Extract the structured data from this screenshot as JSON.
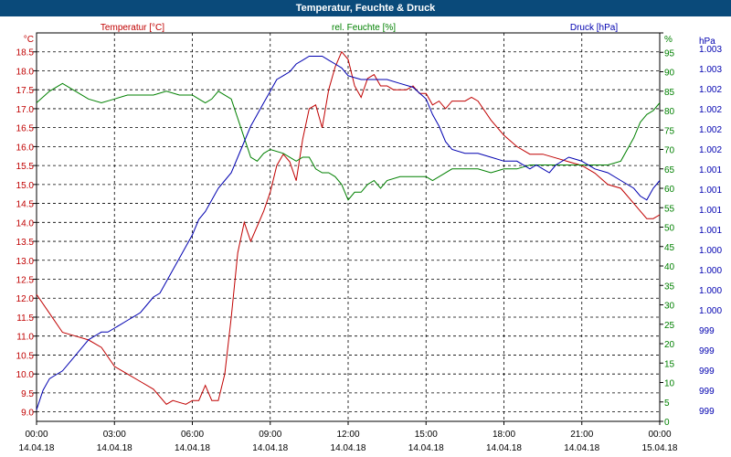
{
  "window": {
    "title": "Temperatur, Feuchte & Druck"
  },
  "colors": {
    "temp": "#c00000",
    "humidity": "#008000",
    "pressure": "#0000b0",
    "grid": "#000000",
    "titlebar": "#0a4a7a"
  },
  "chart_data": {
    "type": "line",
    "title": "Temperatur, Feuchte & Druck",
    "grid": true,
    "legend_placement": "top",
    "x_ticks": [
      "00:00",
      "03:00",
      "06:00",
      "09:00",
      "12:00",
      "15:00",
      "18:00",
      "21:00",
      "00:00"
    ],
    "x_dates": [
      "14.04.18",
      "14.04.18",
      "14.04.18",
      "14.04.18",
      "14.04.18",
      "14.04.18",
      "14.04.18",
      "14.04.18",
      "15.04.18"
    ],
    "axes": {
      "temp": {
        "unit": "°C",
        "label": "Temperatur [°C]",
        "ylim": [
          8.75,
          19.0
        ],
        "ticks": [
          "9.0",
          "9.5",
          "10.0",
          "10.5",
          "11.0",
          "11.5",
          "12.0",
          "12.5",
          "13.0",
          "13.5",
          "14.0",
          "14.5",
          "15.0",
          "15.5",
          "16.0",
          "16.5",
          "17.0",
          "17.5",
          "18.0",
          "18.5"
        ]
      },
      "humidity": {
        "unit": "%",
        "label": "rel. Feuchte [%]",
        "ylim": [
          0,
          100
        ],
        "ticks": [
          "0",
          "5",
          "10",
          "15",
          "20",
          "25",
          "30",
          "35",
          "40",
          "45",
          "50",
          "55",
          "60",
          "65",
          "70",
          "75",
          "80",
          "85",
          "90",
          "95",
          "%"
        ]
      },
      "pressure": {
        "unit": "hPa",
        "label": "Druck [hPa]",
        "ticks": [
          "999",
          "999",
          "999",
          "999",
          "999",
          "1.000",
          "1.000",
          "1.000",
          "1.000",
          "1.001",
          "1.001",
          "1.001",
          "1.001",
          "1.002",
          "1.002",
          "1.002",
          "1.002",
          "1.003",
          "1.003"
        ]
      }
    },
    "series": [
      {
        "name": "Temperatur [°C]",
        "axis": "temp",
        "x": [
          0,
          0.5,
          1,
          1.5,
          2,
          2.5,
          3,
          3.5,
          4,
          4.5,
          5,
          5.25,
          5.5,
          5.75,
          6,
          6.25,
          6.5,
          6.75,
          7,
          7.25,
          7.5,
          7.75,
          8,
          8.25,
          8.5,
          8.75,
          9,
          9.25,
          9.5,
          9.75,
          10,
          10.25,
          10.5,
          10.75,
          11,
          11.25,
          11.5,
          11.75,
          12,
          12.25,
          12.5,
          12.75,
          13,
          13.25,
          13.5,
          13.75,
          14,
          14.25,
          14.5,
          14.75,
          15,
          15.25,
          15.5,
          15.75,
          16,
          16.25,
          16.5,
          16.75,
          17,
          17.5,
          18,
          18.5,
          19,
          19.5,
          20,
          20.5,
          21,
          21.5,
          22,
          22.5,
          23,
          23.25,
          23.5,
          23.75,
          24
        ],
        "values": [
          12.1,
          11.6,
          11.1,
          11.0,
          10.9,
          10.7,
          10.2,
          10.0,
          9.8,
          9.6,
          9.2,
          9.3,
          9.25,
          9.2,
          9.3,
          9.3,
          9.7,
          9.3,
          9.3,
          10.0,
          11.5,
          13.2,
          14.0,
          13.5,
          13.9,
          14.3,
          14.8,
          15.5,
          15.8,
          15.6,
          15.1,
          16.2,
          17.0,
          17.1,
          16.5,
          17.5,
          18.1,
          18.5,
          18.3,
          17.6,
          17.3,
          17.8,
          17.9,
          17.6,
          17.6,
          17.5,
          17.5,
          17.5,
          17.6,
          17.4,
          17.4,
          17.1,
          17.2,
          17.0,
          17.2,
          17.2,
          17.2,
          17.3,
          17.2,
          16.7,
          16.3,
          16.0,
          15.8,
          15.8,
          15.7,
          15.6,
          15.5,
          15.3,
          15.0,
          14.9,
          14.5,
          14.3,
          14.1,
          14.1,
          14.2
        ]
      },
      {
        "name": "rel. Feuchte [%]",
        "axis": "humidity",
        "x": [
          0,
          0.5,
          1,
          1.5,
          2,
          2.5,
          3,
          3.5,
          4,
          4.5,
          5,
          5.5,
          6,
          6.25,
          6.5,
          6.75,
          7,
          7.5,
          8,
          8.25,
          8.5,
          8.75,
          9,
          9.5,
          10,
          10.25,
          10.5,
          10.75,
          11,
          11.25,
          11.5,
          11.75,
          12,
          12.25,
          12.5,
          12.75,
          13,
          13.25,
          13.5,
          14,
          14.5,
          15,
          15.25,
          15.5,
          16,
          16.5,
          17,
          17.5,
          18,
          18.5,
          19,
          19.5,
          20,
          20.5,
          21,
          21.5,
          22,
          22.5,
          23,
          23.25,
          23.5,
          23.75,
          24
        ],
        "values": [
          82,
          85,
          87,
          85,
          83,
          82,
          83,
          84,
          84,
          84,
          85,
          84,
          84,
          83,
          82,
          83,
          85,
          83,
          73,
          68,
          67,
          69,
          70,
          69,
          67,
          68,
          68,
          65,
          64,
          64,
          63,
          61,
          57,
          59,
          59,
          61,
          62,
          60,
          62,
          63,
          63,
          63,
          62,
          63,
          65,
          65,
          65,
          64,
          65,
          65,
          66,
          66,
          66,
          66,
          66,
          66,
          66,
          67,
          73,
          77,
          79,
          80,
          82
        ]
      },
      {
        "name": "Druck [hPa]",
        "axis": "pressure",
        "x": [
          0,
          0.25,
          0.5,
          0.75,
          1,
          1.25,
          1.5,
          1.75,
          2,
          2.25,
          2.5,
          2.75,
          3,
          3.25,
          3.5,
          3.75,
          4,
          4.25,
          4.5,
          4.75,
          5,
          5.25,
          5.5,
          5.75,
          6,
          6.25,
          6.5,
          6.75,
          7,
          7.25,
          7.5,
          7.75,
          8,
          8.25,
          8.5,
          8.75,
          9,
          9.25,
          9.5,
          9.75,
          10,
          10.25,
          10.5,
          10.75,
          11,
          11.25,
          11.5,
          11.75,
          12,
          12.5,
          13,
          13.5,
          14,
          14.5,
          15,
          15.25,
          15.5,
          15.75,
          16,
          16.5,
          17,
          17.5,
          18,
          18.5,
          19,
          19.25,
          19.5,
          19.75,
          20,
          20.5,
          21,
          21.5,
          22,
          22.5,
          23,
          23.25,
          23.5,
          23.75,
          24
        ],
        "values": [
          3,
          8,
          11,
          12,
          13,
          15,
          17,
          19,
          21,
          22,
          23,
          23,
          24,
          25,
          26,
          27,
          28,
          30,
          32,
          33,
          36,
          39,
          42,
          45,
          48,
          52,
          54,
          57,
          60,
          62,
          64,
          68,
          72,
          76,
          79,
          82,
          85,
          88,
          89,
          90,
          92,
          93,
          94,
          94,
          94,
          93,
          92,
          91,
          89,
          88,
          88,
          88,
          87,
          86,
          83,
          79,
          76,
          72,
          70,
          69,
          69,
          68,
          67,
          67,
          65,
          66,
          65,
          64,
          66,
          68,
          67,
          65,
          64,
          62,
          60,
          58,
          57,
          60,
          62
        ],
        "note_scale": "0-100 relative"
      }
    ]
  }
}
